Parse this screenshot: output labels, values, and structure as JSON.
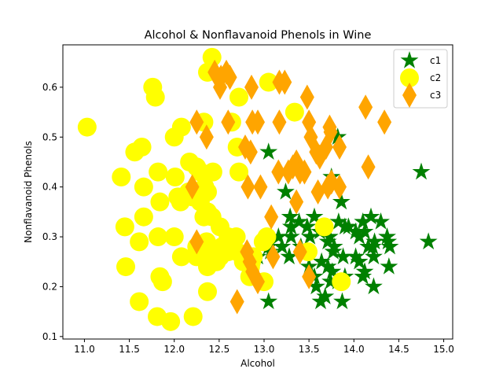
{
  "chart_data": {
    "type": "scatter",
    "title": "Alcohol & Nonflavanoid Phenols in Wine",
    "xlabel": "Alcohol",
    "ylabel": "Nonflavanoid Phenols",
    "xlim": [
      10.76,
      15.1
    ],
    "ylim": [
      0.095,
      0.685
    ],
    "xticks": [
      "11.0",
      "11.5",
      "12.0",
      "12.5",
      "13.0",
      "13.5",
      "14.0",
      "14.5",
      "15.0"
    ],
    "yticks": [
      "0.1",
      "0.2",
      "0.3",
      "0.4",
      "0.5",
      "0.6"
    ],
    "grid": false,
    "legend_position": "top-right",
    "series": [
      {
        "name": "c1",
        "marker": "star",
        "color": "#008000",
        "points": [
          [
            13.05,
            0.47
          ],
          [
            14.75,
            0.43
          ],
          [
            14.83,
            0.29
          ],
          [
            13.05,
            0.17
          ],
          [
            13.24,
            0.39
          ],
          [
            13.75,
            0.42
          ],
          [
            13.82,
            0.5
          ],
          [
            13.86,
            0.37
          ],
          [
            13.29,
            0.34
          ],
          [
            13.3,
            0.32
          ],
          [
            13.39,
            0.33
          ],
          [
            13.48,
            0.32
          ],
          [
            13.56,
            0.34
          ],
          [
            13.62,
            0.31
          ],
          [
            13.71,
            0.29
          ],
          [
            13.73,
            0.3
          ],
          [
            13.77,
            0.27
          ],
          [
            13.83,
            0.33
          ],
          [
            13.9,
            0.32
          ],
          [
            13.94,
            0.32
          ],
          [
            14.02,
            0.31
          ],
          [
            14.06,
            0.3
          ],
          [
            14.1,
            0.33
          ],
          [
            14.12,
            0.31
          ],
          [
            14.16,
            0.28
          ],
          [
            14.19,
            0.34
          ],
          [
            14.21,
            0.28
          ],
          [
            14.22,
            0.26
          ],
          [
            14.23,
            0.29
          ],
          [
            14.3,
            0.33
          ],
          [
            14.37,
            0.3
          ],
          [
            14.38,
            0.29
          ],
          [
            14.39,
            0.24
          ],
          [
            14.4,
            0.28
          ],
          [
            14.06,
            0.25
          ],
          [
            14.02,
            0.26
          ],
          [
            13.16,
            0.3
          ],
          [
            13.2,
            0.28
          ],
          [
            13.28,
            0.26
          ],
          [
            13.3,
            0.3
          ],
          [
            13.41,
            0.28
          ],
          [
            13.5,
            0.24
          ],
          [
            13.51,
            0.3
          ],
          [
            13.56,
            0.22
          ],
          [
            13.58,
            0.2
          ],
          [
            13.63,
            0.17
          ],
          [
            13.64,
            0.25
          ],
          [
            13.68,
            0.18
          ],
          [
            13.71,
            0.24
          ],
          [
            13.74,
            0.21
          ],
          [
            13.76,
            0.23
          ],
          [
            13.78,
            0.28
          ],
          [
            13.82,
            0.21
          ],
          [
            13.87,
            0.17
          ],
          [
            13.88,
            0.26
          ],
          [
            13.9,
            0.22
          ],
          [
            14.1,
            0.22
          ],
          [
            14.12,
            0.23
          ],
          [
            14.22,
            0.2
          ],
          [
            13.05,
            0.28
          ],
          [
            12.93,
            0.26
          ],
          [
            13.07,
            0.27
          ]
        ]
      },
      {
        "name": "c2",
        "marker": "circle",
        "color": "#ffff00",
        "points": [
          [
            11.03,
            0.52
          ],
          [
            12.37,
            0.63
          ],
          [
            12.33,
            0.53
          ],
          [
            12.64,
            0.53
          ],
          [
            12.42,
            0.66
          ],
          [
            11.76,
            0.6
          ],
          [
            11.79,
            0.58
          ],
          [
            12.72,
            0.58
          ],
          [
            13.05,
            0.61
          ],
          [
            13.34,
            0.55
          ],
          [
            11.56,
            0.47
          ],
          [
            11.64,
            0.48
          ],
          [
            12.0,
            0.5
          ],
          [
            12.08,
            0.52
          ],
          [
            12.17,
            0.45
          ],
          [
            12.29,
            0.43
          ],
          [
            12.25,
            0.44
          ],
          [
            12.37,
            0.39
          ],
          [
            12.43,
            0.43
          ],
          [
            12.72,
            0.43
          ],
          [
            12.7,
            0.48
          ],
          [
            11.41,
            0.42
          ],
          [
            11.66,
            0.4
          ],
          [
            11.82,
            0.43
          ],
          [
            11.84,
            0.37
          ],
          [
            12.01,
            0.42
          ],
          [
            12.04,
            0.38
          ],
          [
            12.07,
            0.37
          ],
          [
            12.16,
            0.39
          ],
          [
            12.2,
            0.38
          ],
          [
            12.29,
            0.37
          ],
          [
            12.33,
            0.34
          ],
          [
            12.34,
            0.4
          ],
          [
            12.37,
            0.35
          ],
          [
            12.42,
            0.34
          ],
          [
            12.51,
            0.32
          ],
          [
            12.6,
            0.3
          ],
          [
            11.45,
            0.32
          ],
          [
            11.61,
            0.29
          ],
          [
            11.66,
            0.34
          ],
          [
            11.82,
            0.3
          ],
          [
            12.0,
            0.3
          ],
          [
            12.08,
            0.26
          ],
          [
            12.25,
            0.28
          ],
          [
            12.29,
            0.26
          ],
          [
            12.36,
            0.29
          ],
          [
            12.42,
            0.27
          ],
          [
            12.47,
            0.25
          ],
          [
            12.51,
            0.26
          ],
          [
            12.53,
            0.28
          ],
          [
            12.6,
            0.27
          ],
          [
            12.64,
            0.28
          ],
          [
            12.69,
            0.3
          ],
          [
            12.7,
            0.27
          ],
          [
            12.77,
            0.25
          ],
          [
            12.86,
            0.25
          ],
          [
            12.88,
            0.26
          ],
          [
            12.99,
            0.29
          ],
          [
            13.03,
            0.3
          ],
          [
            12.84,
            0.22
          ],
          [
            12.85,
            0.24
          ],
          [
            13.0,
            0.21
          ],
          [
            12.37,
            0.24
          ],
          [
            12.25,
            0.26
          ],
          [
            11.46,
            0.24
          ],
          [
            11.61,
            0.17
          ],
          [
            11.81,
            0.14
          ],
          [
            11.84,
            0.22
          ],
          [
            11.87,
            0.21
          ],
          [
            11.96,
            0.13
          ],
          [
            12.21,
            0.14
          ],
          [
            12.37,
            0.19
          ],
          [
            13.49,
            0.27
          ],
          [
            13.67,
            0.32
          ],
          [
            13.86,
            0.21
          ]
        ]
      },
      {
        "name": "c3",
        "marker": "diamond",
        "color": "#ffa500",
        "points": [
          [
            12.45,
            0.63
          ],
          [
            12.51,
            0.6
          ],
          [
            12.52,
            0.62
          ],
          [
            12.58,
            0.63
          ],
          [
            12.62,
            0.62
          ],
          [
            12.86,
            0.6
          ],
          [
            13.17,
            0.61
          ],
          [
            13.23,
            0.61
          ],
          [
            13.48,
            0.58
          ],
          [
            14.13,
            0.56
          ],
          [
            12.25,
            0.53
          ],
          [
            12.36,
            0.5
          ],
          [
            12.6,
            0.53
          ],
          [
            12.87,
            0.53
          ],
          [
            12.93,
            0.53
          ],
          [
            13.17,
            0.53
          ],
          [
            13.5,
            0.53
          ],
          [
            13.52,
            0.5
          ],
          [
            13.73,
            0.52
          ],
          [
            13.74,
            0.51
          ],
          [
            13.84,
            0.48
          ],
          [
            14.34,
            0.53
          ],
          [
            12.79,
            0.48
          ],
          [
            12.85,
            0.47
          ],
          [
            13.16,
            0.43
          ],
          [
            13.27,
            0.43
          ],
          [
            13.32,
            0.44
          ],
          [
            13.36,
            0.45
          ],
          [
            13.4,
            0.43
          ],
          [
            13.45,
            0.43
          ],
          [
            13.58,
            0.47
          ],
          [
            13.62,
            0.46
          ],
          [
            13.69,
            0.48
          ],
          [
            13.75,
            0.41
          ],
          [
            13.84,
            0.4
          ],
          [
            14.16,
            0.44
          ],
          [
            12.2,
            0.4
          ],
          [
            12.82,
            0.4
          ],
          [
            12.96,
            0.4
          ],
          [
            13.08,
            0.34
          ],
          [
            13.36,
            0.37
          ],
          [
            13.6,
            0.39
          ],
          [
            13.71,
            0.4
          ],
          [
            12.25,
            0.29
          ],
          [
            12.81,
            0.27
          ],
          [
            12.84,
            0.25
          ],
          [
            12.87,
            0.23
          ],
          [
            12.93,
            0.21
          ],
          [
            13.1,
            0.26
          ],
          [
            13.4,
            0.27
          ],
          [
            13.5,
            0.22
          ],
          [
            12.7,
            0.17
          ]
        ]
      }
    ]
  }
}
